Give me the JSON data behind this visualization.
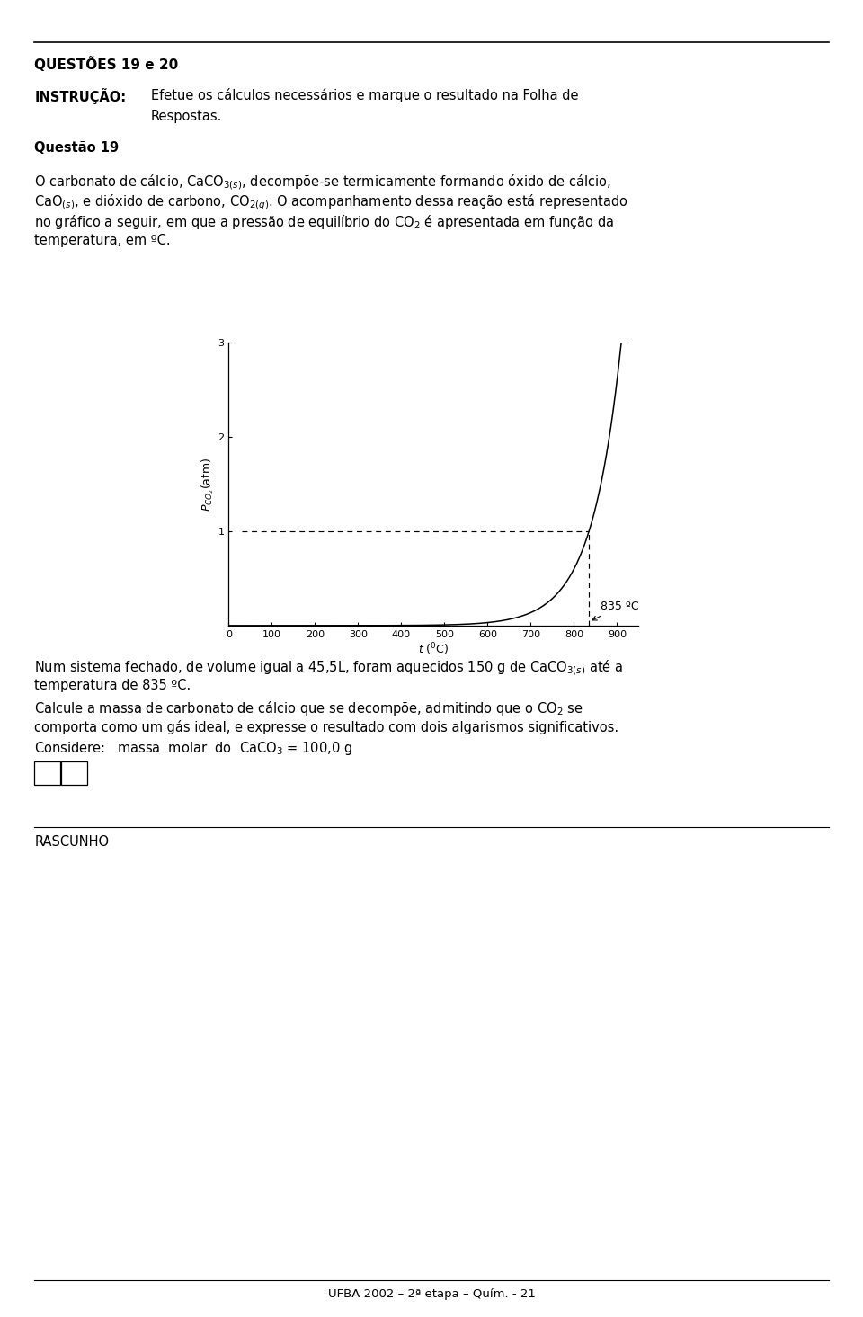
{
  "page_width": 9.6,
  "page_height": 14.65,
  "bg_color": "#ffffff",
  "title_text": "QUESTÕES 19 e 20",
  "instrucao_label": "INSTRUÇÃO:",
  "instrucao_text1": "Efetue os cálculos necessários e marque o resultado na Folha de",
  "instrucao_text2": "Respostas.",
  "questao_text": "Questão 19",
  "body_line1": "O carbonato de cálcio, CaCO$_{3(s)}$, decompõe-se termicamente formando óxido de cálcio,",
  "body_line2": "CaO$_{(s)}$, e dióxido de carbono, CO$_{2(g)}$. O acompanhamento dessa reação está representado",
  "body_line3": "no gráfico a seguir, em que a pressão de equilíbrio do CO$_{2}$ é apresentada em função da",
  "body_line4": "temperatura, em ºC.",
  "xlabel": "$t$ ($^{0}$C)",
  "ylabel": "$P_{CO_2}$(atm)",
  "xlim": [
    0,
    950
  ],
  "ylim": [
    0,
    3.0
  ],
  "xticks": [
    0,
    100,
    200,
    300,
    400,
    500,
    600,
    700,
    800,
    900
  ],
  "yticks": [
    1,
    2,
    3
  ],
  "annotation_text": "835 ºC",
  "num_text1": "Num sistema fechado, de volume igual a 45,5L, foram aquecidos 150 g de CaCO$_{3(s)}$ até a",
  "num_text2": "temperatura de 835 ºC.",
  "num_text3": "Calcule a massa de carbonato de cálcio que se decompõe, admitindo que o CO$_{2}$ se",
  "num_text4": "comporta como um gás ideal, e expresse o resultado com dois algarismos significativos.",
  "num_text5": "Considere:   massa  molar  do  CaCO$_{3}$ = 100,0 g",
  "rascunho_text": "RASCUNHO",
  "bottom_text": "UFBA 2002 – 2ª etapa – Quím. - 21",
  "font_size_body": 10.5,
  "font_size_title": 11.0,
  "font_size_graph": 9.0
}
